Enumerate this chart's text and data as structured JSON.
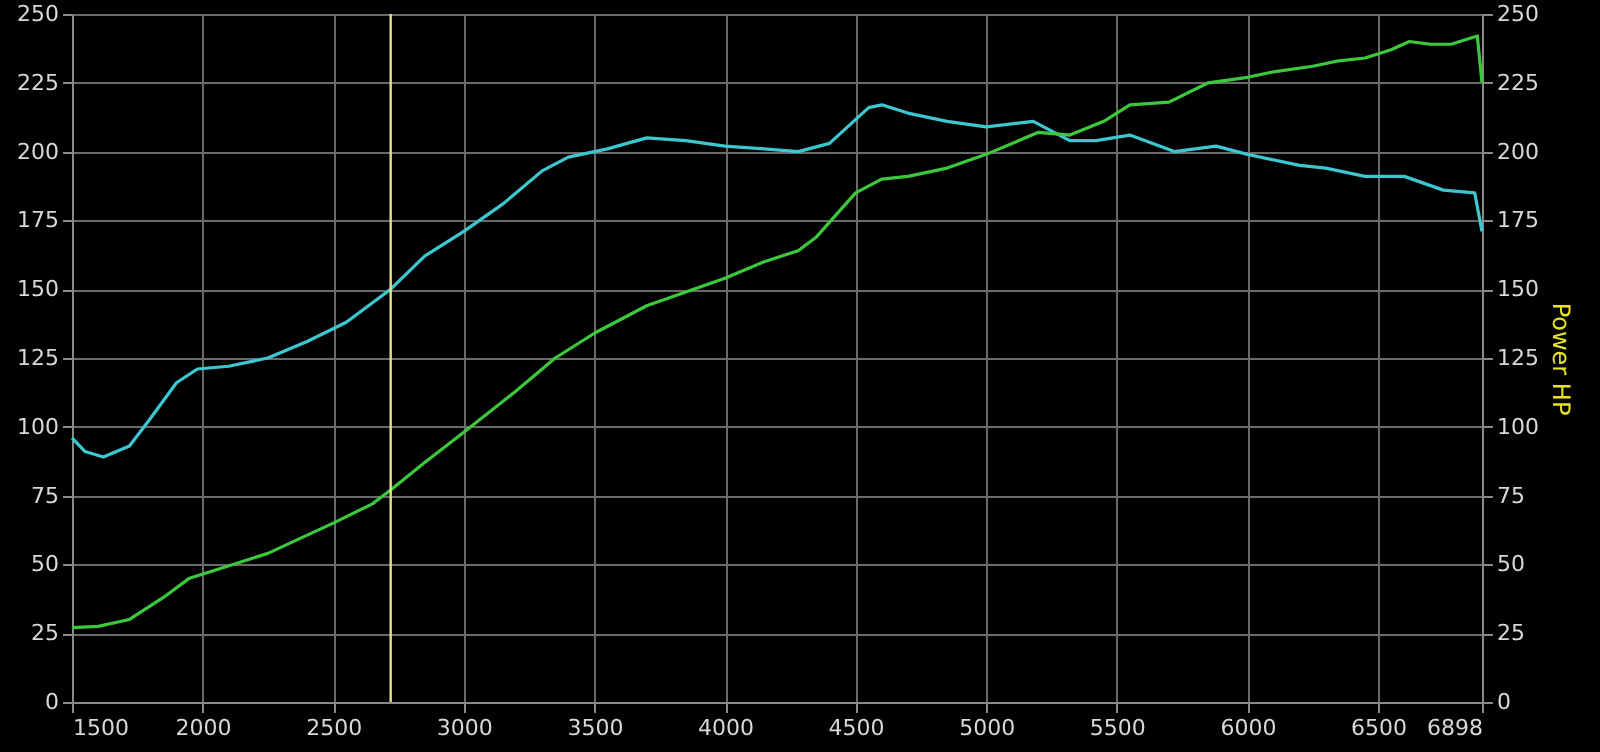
{
  "chart_data": {
    "type": "line",
    "series": [
      {
        "color": "#3cc8d0",
        "x": [
          1500,
          1550,
          1620,
          1720,
          1800,
          1900,
          1980,
          2100,
          2250,
          2400,
          2550,
          2720,
          2850,
          3000,
          3150,
          3300,
          3400,
          3550,
          3700,
          3850,
          4000,
          4150,
          4280,
          4400,
          4550,
          4600,
          4700,
          4850,
          5000,
          5180,
          5320,
          5420,
          5550,
          5720,
          5880,
          6000,
          6200,
          6300,
          6450,
          6600,
          6750,
          6870,
          6898
        ],
        "values": [
          96,
          91,
          89,
          93,
          103,
          116,
          121,
          122,
          125,
          131,
          138,
          150,
          162,
          171,
          181,
          193,
          198,
          201,
          205,
          204,
          202,
          201,
          200,
          203,
          216,
          217,
          214,
          211,
          209,
          211,
          204,
          204,
          206,
          200,
          202,
          199,
          195,
          194,
          191,
          191,
          186,
          185,
          171
        ]
      },
      {
        "color": "#3cc83c",
        "axis": "y2",
        "x": [
          1500,
          1600,
          1720,
          1850,
          1950,
          2050,
          2250,
          2500,
          2650,
          2720,
          2850,
          3000,
          3200,
          3350,
          3500,
          3700,
          3850,
          4000,
          4150,
          4280,
          4350,
          4500,
          4600,
          4700,
          4850,
          5000,
          5200,
          5320,
          5450,
          5550,
          5700,
          5850,
          6000,
          6100,
          6250,
          6350,
          6450,
          6550,
          6620,
          6700,
          6780,
          6880,
          6898
        ],
        "values": [
          27,
          27.5,
          30,
          38,
          45,
          48,
          54,
          65,
          72,
          77,
          87,
          98,
          113,
          125,
          134,
          144,
          149,
          154,
          160,
          164,
          169,
          185,
          190,
          191,
          194,
          199,
          207,
          206,
          211,
          217,
          218,
          225,
          227,
          229,
          231,
          233,
          234,
          237,
          240,
          239,
          239,
          242,
          225
        ]
      }
    ],
    "y2label": "Power HP",
    "xlim": [
      1500,
      6898
    ],
    "xticks": [
      1500,
      2000,
      2500,
      3000,
      3500,
      4000,
      4500,
      5000,
      5500,
      6000,
      6500,
      6898
    ],
    "ylim": [
      0,
      250
    ],
    "yticks": [
      0,
      25,
      50,
      75,
      100,
      125,
      150,
      175,
      200,
      225,
      250
    ],
    "y2lim": [
      0,
      250
    ],
    "y2ticks": [
      0,
      25,
      50,
      75,
      100,
      125,
      150,
      175,
      200,
      225,
      250
    ],
    "ref_lines": [
      {
        "axis": "x",
        "value": 2720,
        "color": "#e6e28a"
      }
    ],
    "grid": true,
    "marker": "none",
    "line_style": "solid"
  }
}
